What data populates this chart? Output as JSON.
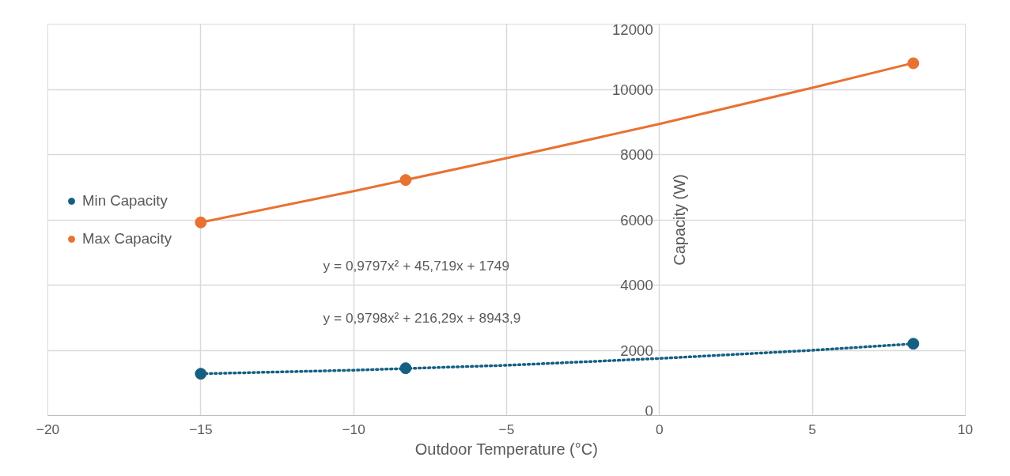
{
  "chart_data": {
    "type": "scatter",
    "xlabel": "Outdoor Temperature (°C)",
    "ylabel": "Capacity (W)",
    "xlim": [
      -20,
      10
    ],
    "xticks": [
      -20,
      -15,
      -10,
      -5,
      0,
      5,
      10
    ],
    "ylim": [
      0,
      12000
    ],
    "yticks": [
      0,
      2000,
      4000,
      6000,
      8000,
      10000,
      12000
    ],
    "grid": true,
    "legend": "left",
    "marker": "circle",
    "series": [
      {
        "name": "Min Capacity",
        "color": "#156082",
        "x": [
          -15,
          -8.3,
          8.3
        ],
        "values": [
          1280,
          1450,
          2200
        ]
      },
      {
        "name": "Max Capacity",
        "color": "#e97132",
        "x": [
          -15,
          -8.3,
          8.3
        ],
        "values": [
          5920,
          7220,
          10800
        ]
      },
      {
        "type": "line",
        "color": "#156082",
        "line_style": "dotted",
        "marker": "none",
        "x": [
          -15,
          -10,
          -5,
          0,
          5,
          8.3
        ],
        "values": [
          1280,
          1390,
          1540,
          1750,
          2000,
          2200
        ]
      },
      {
        "type": "line",
        "color": "#e97132",
        "line_style": "solid",
        "marker": "none",
        "x": [
          -15,
          -10,
          -5,
          0,
          5,
          8.3
        ],
        "values": [
          5920,
          6880,
          7890,
          8940,
          10050,
          10810
        ]
      }
    ],
    "annotations": [
      "y = 0,9797x² + 45,719x + 1749",
      "y = 0,9798x² + 216,29x + 8943,9"
    ]
  }
}
